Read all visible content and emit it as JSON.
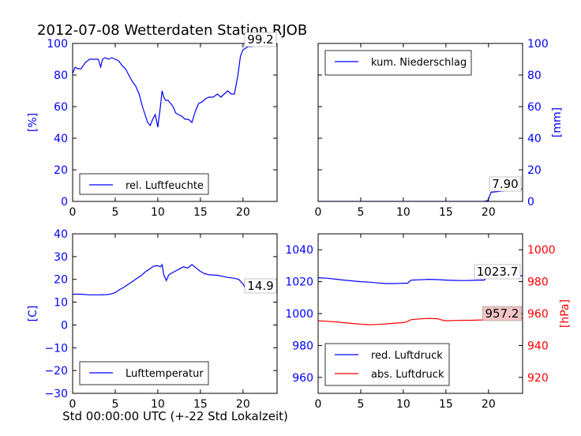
{
  "title": "2012-07-08 Wetterdaten Station RJOB",
  "xlabel": "Std 00:00:00 UTC (+-22 Std Lokalzeit)",
  "chart_data": [
    {
      "id": "humidity",
      "type": "line",
      "xlim": [
        0,
        24
      ],
      "ylim": [
        0,
        100
      ],
      "xticks": [
        "0",
        "5",
        "10",
        "15",
        "20"
      ],
      "yticks": [
        "0",
        "20",
        "40",
        "60",
        "80",
        "100"
      ],
      "ylabel": "[%]",
      "legend": "rel. Luftfeuchte",
      "legend_position": "lower-left",
      "annotation": "99.2",
      "series": [
        {
          "name": "rel. Luftfeuchte",
          "color": "#0000ff",
          "x": [
            0,
            0.3,
            0.6,
            1.0,
            1.5,
            2.0,
            2.5,
            3.0,
            3.3,
            3.5,
            3.8,
            4.2,
            4.6,
            5.0,
            5.4,
            5.8,
            6.2,
            6.6,
            7.0,
            7.4,
            7.8,
            8.2,
            8.5,
            8.8,
            9.1,
            9.4,
            9.7,
            10.0,
            10.3,
            10.5,
            10.7,
            10.9,
            11.2,
            11.5,
            11.8,
            12.1,
            12.4,
            12.8,
            13.2,
            13.6,
            14.0,
            14.4,
            14.8,
            15.2,
            15.6,
            16.0,
            16.5,
            17.0,
            17.4,
            17.8,
            18.2,
            18.6,
            19.0,
            19.4,
            19.7,
            20.0,
            20.3,
            20.6,
            21.0,
            21.5,
            22.0,
            22.5,
            23.0,
            23.5,
            24.0
          ],
          "y": [
            81,
            85,
            84,
            84,
            88,
            90,
            90,
            90,
            85,
            90,
            91,
            90,
            91,
            90,
            89,
            86,
            84,
            80,
            76,
            73,
            68,
            60,
            55,
            50,
            48,
            52,
            55,
            47,
            60,
            70,
            66,
            64,
            64,
            62,
            60,
            56,
            55,
            54,
            52,
            52,
            50,
            57,
            62,
            63,
            65,
            66,
            66,
            68,
            66,
            68,
            70,
            68,
            68,
            80,
            92,
            96,
            97,
            98,
            98,
            98.5,
            99,
            99,
            99.2,
            99.2,
            99.2
          ]
        }
      ]
    },
    {
      "id": "precipitation",
      "type": "line",
      "xlim": [
        0,
        24
      ],
      "ylim": [
        0,
        100
      ],
      "xticks": [
        "0",
        "5",
        "10",
        "15",
        "20"
      ],
      "yticks": [
        "0",
        "20",
        "40",
        "60",
        "80",
        "100"
      ],
      "ylabel": "[mm]",
      "legend": "kum. Niederschlag",
      "legend_position": "upper-left",
      "annotation": "7.90",
      "series": [
        {
          "name": "kum. Niederschlag",
          "color": "#0000ff",
          "x": [
            0,
            19.5,
            19.9,
            20.1,
            20.3,
            21,
            22,
            23,
            24
          ],
          "y": [
            0,
            0,
            0.5,
            3,
            5.8,
            6.2,
            6.8,
            7.4,
            7.9
          ]
        }
      ]
    },
    {
      "id": "temperature",
      "type": "line",
      "xlim": [
        0,
        24
      ],
      "ylim": [
        -30,
        40
      ],
      "xticks": [
        "0",
        "5",
        "10",
        "15",
        "20"
      ],
      "yticks": [
        "−30",
        "−20",
        "−10",
        "0",
        "10",
        "20",
        "30",
        "40"
      ],
      "ylabel": "[C]",
      "legend": "Lufttemperatur",
      "legend_position": "lower-left",
      "annotation": "14.9",
      "series": [
        {
          "name": "Lufttemperatur",
          "color": "#0000ff",
          "x": [
            0,
            1,
            2,
            3,
            4,
            4.5,
            5,
            5.5,
            6,
            6.5,
            7,
            7.5,
            8,
            8.5,
            9,
            9.5,
            10,
            10.3,
            10.5,
            10.7,
            11,
            11.3,
            11.5,
            12,
            12.5,
            13,
            13.5,
            14,
            14.5,
            15,
            15.5,
            16,
            17,
            18,
            19,
            19.5,
            20,
            20.3,
            21,
            22,
            23,
            24
          ],
          "y": [
            13.5,
            13.5,
            13.2,
            13.2,
            13.3,
            13.6,
            14.2,
            15.5,
            16.5,
            17.8,
            19,
            20.3,
            21.5,
            23.2,
            24.5,
            25.8,
            26,
            25.5,
            26.5,
            22,
            19.5,
            22,
            22.5,
            23.5,
            24.5,
            25.5,
            25,
            26.5,
            25,
            23.5,
            22.5,
            22,
            21.8,
            21,
            20.5,
            20,
            18,
            16,
            15,
            15,
            14.9,
            14.9
          ]
        }
      ]
    },
    {
      "id": "pressure",
      "type": "line",
      "xlim": [
        0,
        24
      ],
      "ylim_left": [
        950,
        1050
      ],
      "ylim_right": [
        910,
        1010
      ],
      "xticks": [
        "0",
        "5",
        "10",
        "15",
        "20"
      ],
      "yticks_left": [
        "960",
        "980",
        "1000",
        "1020",
        "1040"
      ],
      "yticks_right": [
        "920",
        "940",
        "960",
        "980",
        "1000"
      ],
      "ylabel_right": "[hPa]",
      "legend": [
        "red. Luftdruck",
        "abs. Luftdruck"
      ],
      "legend_position": "lower-left",
      "annotations": [
        "1023.7",
        "957.2"
      ],
      "series": [
        {
          "name": "red. Luftdruck",
          "axis": "left",
          "color": "#0000ff",
          "x": [
            0,
            1,
            2,
            3,
            4,
            5,
            6,
            7,
            8,
            9,
            10,
            10.5,
            10.8,
            11,
            12,
            13,
            14,
            15,
            16,
            17,
            18,
            19,
            19.5,
            20,
            21,
            22,
            23,
            24
          ],
          "y": [
            1022.5,
            1022.2,
            1021.6,
            1021,
            1020.5,
            1020,
            1019.7,
            1019.2,
            1018.8,
            1018.8,
            1019,
            1019,
            1020.5,
            1021,
            1021.2,
            1021.5,
            1021.3,
            1021,
            1020.8,
            1020.7,
            1020.8,
            1021,
            1021,
            1023.7,
            1023.7,
            1023.7,
            1023.7,
            1023.7
          ]
        },
        {
          "name": "abs. Luftdruck",
          "axis": "right",
          "color": "#ff0000",
          "x": [
            0,
            1,
            2,
            3,
            4,
            5,
            6,
            7,
            8,
            9,
            10,
            10.5,
            10.8,
            11,
            12,
            13,
            14,
            14.5,
            15,
            16,
            17,
            18,
            19,
            19.5,
            20,
            21,
            22,
            23,
            24
          ],
          "y": [
            955.5,
            955.2,
            954.8,
            954.3,
            953.8,
            953.3,
            953,
            953.2,
            953.5,
            954,
            954.3,
            955,
            956,
            956.2,
            956.7,
            957,
            956.8,
            956,
            955.5,
            955.7,
            955.8,
            955.8,
            956,
            956,
            957,
            957.2,
            957.2,
            957.2,
            957.2
          ]
        }
      ]
    }
  ]
}
